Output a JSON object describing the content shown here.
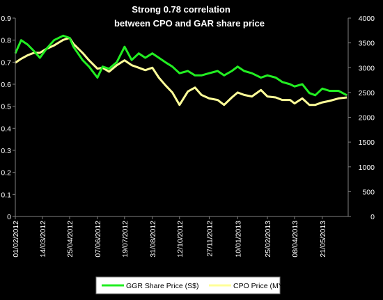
{
  "chart_data": {
    "type": "line",
    "title_lines": [
      "Strong 0.78 correlation",
      "between CPO and GAR share price"
    ],
    "xlabel": "",
    "x_ticks": [
      "01/02/2012",
      "14/03/2012",
      "25/04/2012",
      "07/06/2012",
      "19/07/2012",
      "31/08/2012",
      "12/10/2012",
      "27/11/2012",
      "10/01/2013",
      "25/02/2013",
      "08/04/2013",
      "21/05/2013"
    ],
    "x_range": [
      "01/02/2012",
      "30/06/2013"
    ],
    "y_left": {
      "ylim": [
        0,
        0.9
      ],
      "ticks": [
        "0",
        "0.1",
        "0.2",
        "0.3",
        "0.4",
        "0.5",
        "0.6",
        "0.7",
        "0.8",
        "0.9"
      ]
    },
    "y_right": {
      "ylim": [
        0,
        4000
      ],
      "ticks": [
        "0",
        "500",
        "1000",
        "1500",
        "2000",
        "2500",
        "3000",
        "3500",
        "4000"
      ]
    },
    "grid": false,
    "legend_position": "bottom",
    "series": [
      {
        "name": "GGR Share Price (S$)",
        "axis": "left",
        "color": "#22ee22",
        "x": [
          "01/02/2012",
          "10/02/2012",
          "20/02/2012",
          "01/03/2012",
          "10/03/2012",
          "20/03/2012",
          "01/04/2012",
          "15/04/2012",
          "25/04/2012",
          "01/05/2012",
          "15/05/2012",
          "25/05/2012",
          "07/06/2012",
          "15/06/2012",
          "25/06/2012",
          "07/07/2012",
          "19/07/2012",
          "30/07/2012",
          "10/08/2012",
          "20/08/2012",
          "31/08/2012",
          "10/09/2012",
          "20/09/2012",
          "01/10/2012",
          "12/10/2012",
          "25/10/2012",
          "05/11/2012",
          "15/11/2012",
          "27/11/2012",
          "10/12/2012",
          "20/12/2012",
          "01/01/2013",
          "10/01/2013",
          "20/01/2013",
          "01/02/2013",
          "15/02/2013",
          "25/02/2013",
          "10/03/2013",
          "20/03/2013",
          "01/04/2013",
          "08/04/2013",
          "20/04/2013",
          "01/05/2013",
          "10/05/2013",
          "21/05/2013",
          "01/06/2013",
          "15/06/2013",
          "28/06/2013"
        ],
        "values": [
          0.74,
          0.8,
          0.78,
          0.75,
          0.72,
          0.76,
          0.8,
          0.82,
          0.81,
          0.77,
          0.71,
          0.68,
          0.63,
          0.68,
          0.67,
          0.7,
          0.77,
          0.71,
          0.74,
          0.72,
          0.74,
          0.72,
          0.7,
          0.68,
          0.65,
          0.66,
          0.64,
          0.64,
          0.65,
          0.66,
          0.64,
          0.66,
          0.68,
          0.66,
          0.65,
          0.63,
          0.64,
          0.63,
          0.61,
          0.6,
          0.59,
          0.6,
          0.56,
          0.55,
          0.58,
          0.57,
          0.57,
          0.55
        ]
      },
      {
        "name": "CPO Price (MYR/ton)",
        "axis": "right",
        "color": "#ffff99",
        "x": [
          "01/02/2012",
          "10/02/2012",
          "20/02/2012",
          "01/03/2012",
          "10/03/2012",
          "20/03/2012",
          "01/04/2012",
          "15/04/2012",
          "25/04/2012",
          "01/05/2012",
          "15/05/2012",
          "25/05/2012",
          "07/06/2012",
          "15/06/2012",
          "25/06/2012",
          "07/07/2012",
          "19/07/2012",
          "30/07/2012",
          "10/08/2012",
          "20/08/2012",
          "31/08/2012",
          "10/09/2012",
          "20/09/2012",
          "01/10/2012",
          "12/10/2012",
          "25/10/2012",
          "05/11/2012",
          "15/11/2012",
          "27/11/2012",
          "10/12/2012",
          "20/12/2012",
          "01/01/2013",
          "10/01/2013",
          "20/01/2013",
          "01/02/2013",
          "15/02/2013",
          "25/02/2013",
          "10/03/2013",
          "20/03/2013",
          "01/04/2013",
          "08/04/2013",
          "20/04/2013",
          "01/05/2013",
          "10/05/2013",
          "21/05/2013",
          "01/06/2013",
          "15/06/2013",
          "28/06/2013"
        ],
        "values": [
          3100,
          3180,
          3250,
          3300,
          3300,
          3380,
          3450,
          3560,
          3600,
          3480,
          3300,
          3150,
          2980,
          3000,
          2920,
          3050,
          3150,
          3050,
          3000,
          2950,
          3000,
          2800,
          2650,
          2500,
          2250,
          2520,
          2600,
          2450,
          2380,
          2350,
          2250,
          2400,
          2500,
          2450,
          2420,
          2550,
          2420,
          2400,
          2350,
          2350,
          2280,
          2380,
          2250,
          2250,
          2300,
          2330,
          2380,
          2400
        ]
      }
    ]
  }
}
